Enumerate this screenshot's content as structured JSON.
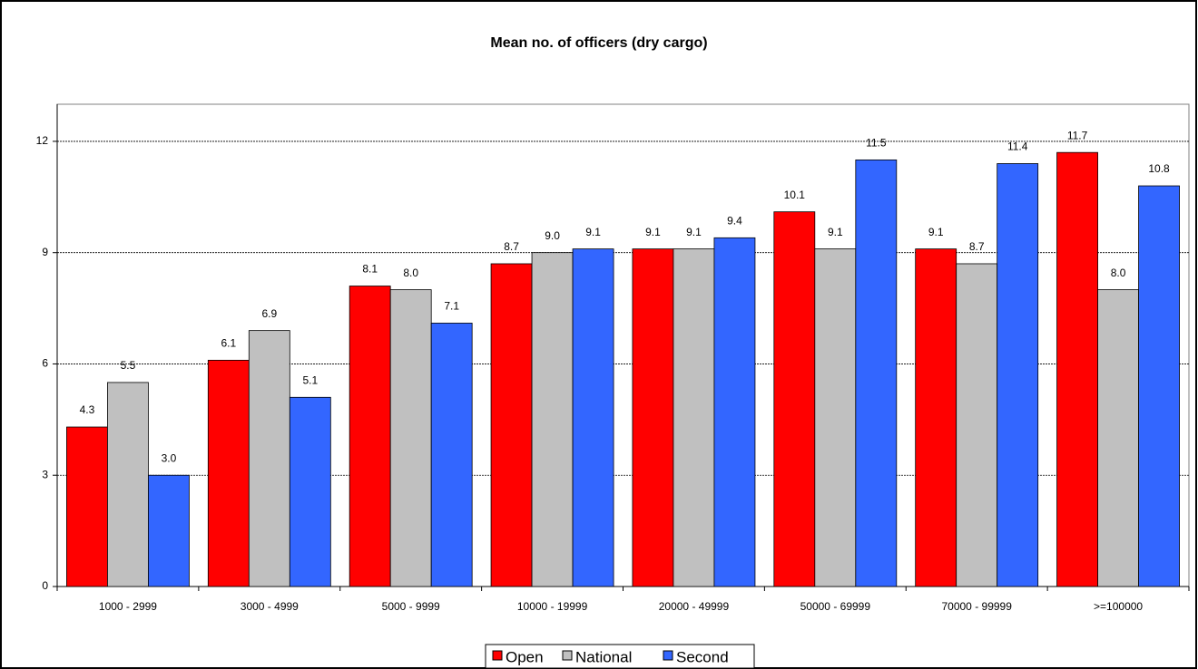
{
  "chart_data": {
    "type": "bar",
    "title": "Mean no. of officers (dry cargo)",
    "categories": [
      "1000 - 2999",
      "3000 - 4999",
      "5000 - 9999",
      "10000 - 19999",
      "20000 - 49999",
      "50000 - 69999",
      "70000 - 99999",
      ">=100000"
    ],
    "series": [
      {
        "name": "Open",
        "color": "#ff0000",
        "values": [
          4.3,
          6.1,
          8.1,
          8.7,
          9.1,
          10.1,
          9.1,
          11.7
        ],
        "value_labels": [
          "4.3",
          "6.1",
          "8.1",
          "8.7",
          "9.1",
          "10.1",
          "9.1",
          "11.7"
        ]
      },
      {
        "name": "National",
        "color": "#c0c0c0",
        "values": [
          5.5,
          6.9,
          8.0,
          9.0,
          9.1,
          9.1,
          8.7,
          8.0
        ],
        "value_labels": [
          "5.5",
          "6.9",
          "8.0",
          "9.0",
          "9.1",
          "9.1",
          "8.7",
          "8.0"
        ]
      },
      {
        "name": "Second",
        "color": "#3366ff",
        "values": [
          3.0,
          5.1,
          7.1,
          9.1,
          9.4,
          11.5,
          11.4,
          10.8
        ],
        "value_labels": [
          "3.0",
          "5.1",
          "7.1",
          "9.1",
          "9.4",
          "11.5",
          "11.4",
          "10.8"
        ]
      }
    ],
    "ylim": [
      0,
      13
    ],
    "yticks": [
      0,
      3,
      6,
      9,
      12
    ],
    "grid": true,
    "legend": "bottom"
  }
}
